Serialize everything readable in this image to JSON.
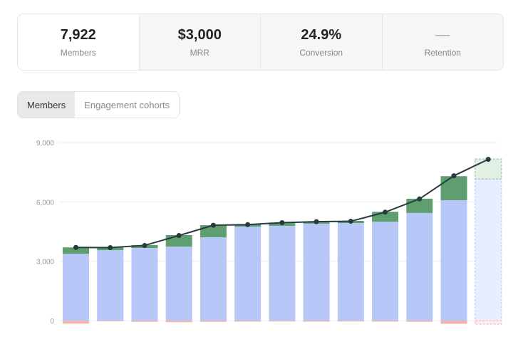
{
  "stats": [
    {
      "value": "7,922",
      "label": "Members"
    },
    {
      "value": "$3,000",
      "label": "MRR"
    },
    {
      "value": "24.9%",
      "label": "Conversion"
    },
    {
      "value": "—",
      "label": "Retention"
    }
  ],
  "tabs": [
    {
      "label": "Members",
      "active": true
    },
    {
      "label": "Engagement cohorts",
      "active": false
    }
  ],
  "colors": {
    "base": "#b7c8f8",
    "new": "#5f9e6f",
    "churn": "#f4b3ad",
    "line": "#263a40",
    "projected_base": "#e8eefd",
    "projected_new": "#e2efe4"
  },
  "chart_data": {
    "type": "bar",
    "stacked": true,
    "ylim": [
      -300,
      9000
    ],
    "yticks": [
      "0",
      "3,000",
      "6,000",
      "9,000"
    ],
    "ytick_values": [
      0,
      3000,
      6000,
      9000
    ],
    "grid": true,
    "series": [
      {
        "key": "base",
        "values": [
          3380,
          3560,
          3670,
          3740,
          4210,
          4750,
          4790,
          4900,
          4930,
          5000,
          5440,
          6080,
          7160
        ]
      },
      {
        "key": "new",
        "values": [
          320,
          140,
          150,
          580,
          610,
          110,
          140,
          70,
          110,
          500,
          720,
          1220,
          1010
        ]
      },
      {
        "key": "churn",
        "values": [
          -150,
          -30,
          -60,
          -80,
          -60,
          -50,
          -40,
          -50,
          -40,
          -50,
          -60,
          -160,
          -180
        ]
      }
    ],
    "line": [
      3700,
      3690,
      3800,
      4300,
      4820,
      4850,
      4950,
      5000,
      5020,
      5480,
      6150,
      7320,
      8150
    ],
    "projected_index": 12
  }
}
